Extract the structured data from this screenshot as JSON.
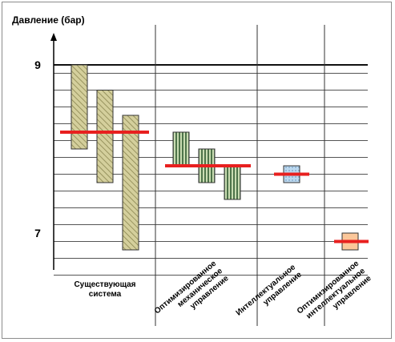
{
  "chart_data": {
    "type": "bar",
    "title": "",
    "ylabel": "Давление (бар)",
    "ylim": [
      6.5,
      9.1
    ],
    "yticks": [
      {
        "value": 9,
        "label": "9"
      },
      {
        "value": 7,
        "label": "7"
      }
    ],
    "grid": true,
    "groups": [
      {
        "name": "Существующая система",
        "label_lines": [
          "Существующая",
          "система"
        ],
        "bars": [
          [
            8.0,
            9.0
          ],
          [
            7.6,
            8.7
          ],
          [
            6.8,
            8.4
          ]
        ],
        "setpoint": 8.2,
        "fill": "#d4cf9c",
        "pattern": "diagonal"
      },
      {
        "name": "Оптимизированное механическое управление",
        "label_lines": [
          "Оптимизированное",
          "механическое",
          "управление"
        ],
        "bars": [
          [
            7.8,
            8.2
          ],
          [
            7.6,
            8.0
          ],
          [
            7.4,
            7.8
          ]
        ],
        "setpoint": 7.8,
        "fill": "#c9dcb2",
        "pattern": "vertical"
      },
      {
        "name": "Интеллектуальное управление",
        "label_lines": [
          "Интеллектуальное",
          "управление"
        ],
        "bars": [
          [
            7.6,
            7.8
          ]
        ],
        "setpoint": 7.7,
        "fill": "#bcd9f0",
        "pattern": "dots"
      },
      {
        "name": "Оптимизированное интеллектуальное управление",
        "label_lines": [
          "Оптимизированное",
          "интеллектуальное",
          "управление"
        ],
        "bars": [
          [
            6.8,
            7.0
          ]
        ],
        "setpoint": 6.9,
        "fill": "#fbc79a",
        "pattern": "none"
      }
    ],
    "colors": {
      "setpoint": "#e8201f",
      "grid_major": "#111111",
      "grid_minor": "#555555",
      "bar_border": "#333333",
      "separator": "#333333"
    }
  }
}
